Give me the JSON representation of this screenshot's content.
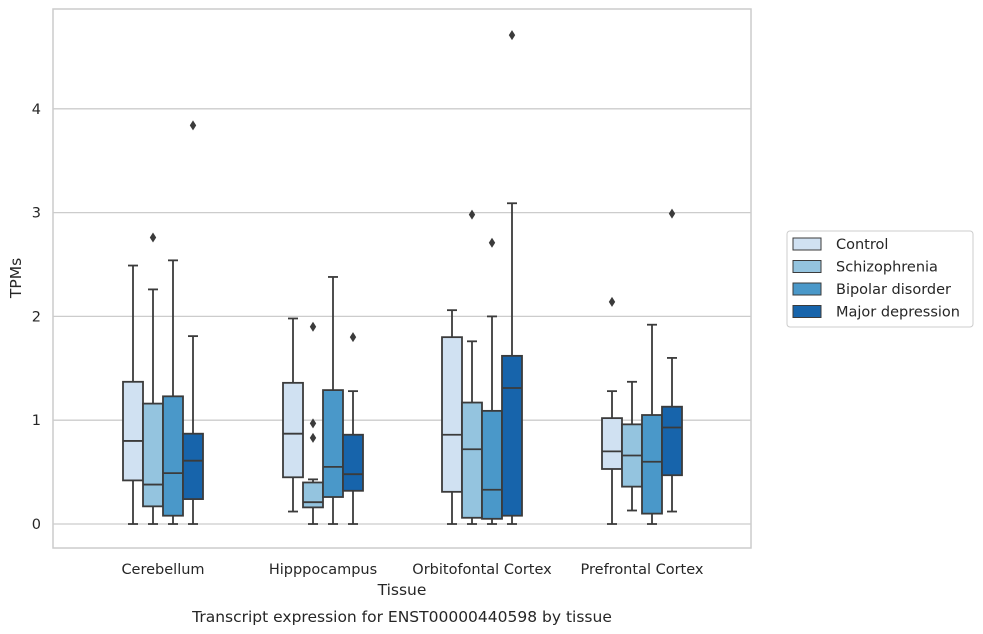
{
  "chart_data": {
    "type": "box",
    "title": "Transcript expression for ENST00000440598 by tissue",
    "xlabel": "Tissue",
    "ylabel": "TPMs",
    "ylim": [
      -0.22,
      4.96
    ],
    "yticks": [
      0,
      1,
      2,
      3,
      4
    ],
    "grid": "horizontal",
    "legend_position": "right",
    "categories": [
      "Cerebellum",
      "Hipppocampus",
      "Orbitofontal Cortex",
      "Prefrontal Cortex"
    ],
    "series": [
      {
        "name": "Control",
        "color": "#d0e1f2",
        "boxes": [
          {
            "whislo": 0.0,
            "q1": 0.42,
            "med": 0.8,
            "q3": 1.37,
            "whishi": 2.49,
            "fliers": []
          },
          {
            "whislo": 0.12,
            "q1": 0.45,
            "med": 0.87,
            "q3": 1.36,
            "whishi": 1.98,
            "fliers": []
          },
          {
            "whislo": 0.0,
            "q1": 0.31,
            "med": 0.86,
            "q3": 1.8,
            "whishi": 2.06,
            "fliers": []
          },
          {
            "whislo": 0.0,
            "q1": 0.53,
            "med": 0.7,
            "q3": 1.02,
            "whishi": 1.28,
            "fliers": [
              2.14
            ]
          }
        ]
      },
      {
        "name": "Schizophrenia",
        "color": "#94c4df",
        "boxes": [
          {
            "whislo": 0.0,
            "q1": 0.17,
            "med": 0.38,
            "q3": 1.16,
            "whishi": 2.26,
            "fliers": [
              2.76
            ]
          },
          {
            "whislo": 0.0,
            "q1": 0.16,
            "med": 0.21,
            "q3": 0.4,
            "whishi": 0.43,
            "fliers": [
              0.83,
              0.97,
              1.9
            ]
          },
          {
            "whislo": 0.0,
            "q1": 0.06,
            "med": 0.72,
            "q3": 1.17,
            "whishi": 1.76,
            "fliers": [
              2.98
            ]
          },
          {
            "whislo": 0.13,
            "q1": 0.36,
            "med": 0.66,
            "q3": 0.96,
            "whishi": 1.37,
            "fliers": []
          }
        ]
      },
      {
        "name": "Bipolar disorder",
        "color": "#4a98c9",
        "boxes": [
          {
            "whislo": 0.0,
            "q1": 0.08,
            "med": 0.49,
            "q3": 1.23,
            "whishi": 2.54,
            "fliers": []
          },
          {
            "whislo": 0.0,
            "q1": 0.26,
            "med": 0.55,
            "q3": 1.29,
            "whishi": 2.38,
            "fliers": []
          },
          {
            "whislo": 0.0,
            "q1": 0.05,
            "med": 0.33,
            "q3": 1.09,
            "whishi": 2.0,
            "fliers": [
              2.71
            ]
          },
          {
            "whislo": 0.0,
            "q1": 0.1,
            "med": 0.6,
            "q3": 1.05,
            "whishi": 1.92,
            "fliers": []
          }
        ]
      },
      {
        "name": "Major depression",
        "color": "#1764ab",
        "boxes": [
          {
            "whislo": 0.0,
            "q1": 0.24,
            "med": 0.61,
            "q3": 0.87,
            "whishi": 1.81,
            "fliers": [
              3.84
            ]
          },
          {
            "whislo": 0.0,
            "q1": 0.32,
            "med": 0.48,
            "q3": 0.86,
            "whishi": 1.28,
            "fliers": [
              1.8
            ]
          },
          {
            "whislo": 0.0,
            "q1": 0.08,
            "med": 1.31,
            "q3": 1.62,
            "whishi": 3.09,
            "fliers": [
              4.71
            ]
          },
          {
            "whislo": 0.12,
            "q1": 0.47,
            "med": 0.93,
            "q3": 1.13,
            "whishi": 1.6,
            "fliers": [
              2.99
            ]
          }
        ]
      }
    ]
  }
}
